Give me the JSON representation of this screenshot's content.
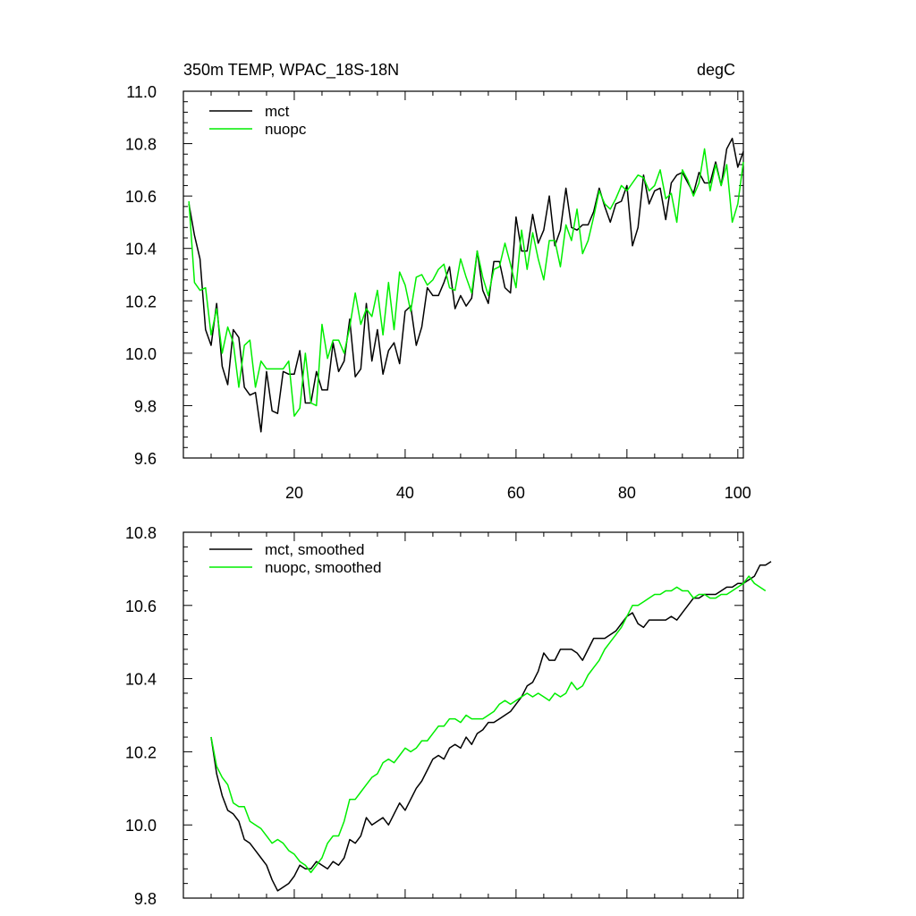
{
  "colors": {
    "mct": "#000000",
    "nuopc": "#00ee00"
  },
  "chart_data": [
    {
      "type": "line",
      "title": "350m TEMP, WPAC_18S-18N",
      "units": "degC",
      "xlim": [
        0,
        101
      ],
      "ylim": [
        9.6,
        11.0
      ],
      "yticks": [
        "9.6",
        "9.8",
        "10.0",
        "10.2",
        "10.4",
        "10.6",
        "10.8",
        "11.0"
      ],
      "xticks": [
        "20",
        "40",
        "60",
        "80",
        "100"
      ],
      "x_start": 1,
      "series": [
        {
          "name": "mct",
          "color_key": "mct",
          "values": [
            10.57,
            10.45,
            10.36,
            10.09,
            10.03,
            10.19,
            9.95,
            9.88,
            10.09,
            10.06,
            9.87,
            9.84,
            9.85,
            9.7,
            9.93,
            9.78,
            9.77,
            9.93,
            9.92,
            9.92,
            10.01,
            9.81,
            9.81,
            9.93,
            9.86,
            9.86,
            10.04,
            9.93,
            9.97,
            10.13,
            9.91,
            9.94,
            10.19,
            9.97,
            10.09,
            9.92,
            10.01,
            10.04,
            9.96,
            10.16,
            10.18,
            10.03,
            10.1,
            10.25,
            10.22,
            10.22,
            10.27,
            10.33,
            10.17,
            10.22,
            10.18,
            10.21,
            10.39,
            10.24,
            10.19,
            10.35,
            10.35,
            10.25,
            10.23,
            10.52,
            10.39,
            10.39,
            10.53,
            10.42,
            10.47,
            10.6,
            10.41,
            10.47,
            10.63,
            10.48,
            10.47,
            10.49,
            10.49,
            10.54,
            10.63,
            10.56,
            10.5,
            10.57,
            10.58,
            10.64,
            10.41,
            10.48,
            10.68,
            10.57,
            10.62,
            10.63,
            10.51,
            10.65,
            10.68,
            10.69,
            10.65,
            10.61,
            10.69,
            10.65,
            10.65,
            10.73,
            10.64,
            10.78,
            10.82,
            10.71,
            10.77
          ]
        },
        {
          "name": "nuopc",
          "color_key": "nuopc",
          "values": [
            10.58,
            10.27,
            10.24,
            10.25,
            10.07,
            10.17,
            10.0,
            10.1,
            10.04,
            9.87,
            10.03,
            10.05,
            9.87,
            9.97,
            9.94,
            9.94,
            9.94,
            9.94,
            9.97,
            9.76,
            9.79,
            10.0,
            9.81,
            9.8,
            10.11,
            9.98,
            10.05,
            10.05,
            10.0,
            10.1,
            10.23,
            10.11,
            10.17,
            10.14,
            10.24,
            10.07,
            10.27,
            10.09,
            10.31,
            10.26,
            10.16,
            10.29,
            10.3,
            10.26,
            10.28,
            10.32,
            10.34,
            10.25,
            10.24,
            10.36,
            10.29,
            10.23,
            10.39,
            10.29,
            10.22,
            10.32,
            10.33,
            10.42,
            10.34,
            10.25,
            10.47,
            10.32,
            10.46,
            10.36,
            10.28,
            10.43,
            10.43,
            10.33,
            10.49,
            10.43,
            10.55,
            10.38,
            10.43,
            10.52,
            10.62,
            10.57,
            10.55,
            10.59,
            10.64,
            10.62,
            10.65,
            10.68,
            10.67,
            10.62,
            10.64,
            10.7,
            10.59,
            10.61,
            10.5,
            10.7,
            10.66,
            10.6,
            10.65,
            10.78,
            10.62,
            10.72,
            10.64,
            10.72,
            10.5,
            10.57,
            10.73
          ]
        }
      ],
      "legend": {
        "placement": "top-left",
        "entries": [
          "mct",
          "nuopc"
        ]
      }
    },
    {
      "type": "line",
      "title": "",
      "xlim": [
        0,
        101
      ],
      "ylim": [
        9.8,
        10.8
      ],
      "yticks": [
        "9.8",
        "10.0",
        "10.2",
        "10.4",
        "10.6",
        "10.8"
      ],
      "x_start": 5,
      "series": [
        {
          "name": "mct, smoothed",
          "color_key": "mct",
          "values": [
            10.24,
            10.14,
            10.08,
            10.04,
            10.03,
            10.01,
            9.96,
            9.95,
            9.93,
            9.91,
            9.89,
            9.85,
            9.82,
            9.83,
            9.84,
            9.86,
            9.89,
            9.88,
            9.88,
            9.9,
            9.89,
            9.88,
            9.9,
            9.89,
            9.91,
            9.96,
            9.95,
            9.97,
            10.02,
            10.0,
            10.01,
            10.02,
            10.0,
            10.03,
            10.06,
            10.04,
            10.07,
            10.1,
            10.12,
            10.15,
            10.18,
            10.19,
            10.18,
            10.21,
            10.22,
            10.21,
            10.24,
            10.22,
            10.25,
            10.26,
            10.28,
            10.28,
            10.29,
            10.3,
            10.31,
            10.33,
            10.35,
            10.38,
            10.39,
            10.42,
            10.47,
            10.45,
            10.45,
            10.48,
            10.48,
            10.48,
            10.47,
            10.45,
            10.48,
            10.51,
            10.51,
            10.51,
            10.52,
            10.53,
            10.55,
            10.57,
            10.58,
            10.55,
            10.54,
            10.56,
            10.56,
            10.56,
            10.56,
            10.57,
            10.56,
            10.58,
            10.6,
            10.62,
            10.62,
            10.63,
            10.63,
            10.63,
            10.64,
            10.65,
            10.65,
            10.66,
            10.66,
            10.67,
            10.68,
            10.71,
            10.71,
            10.72
          ]
        },
        {
          "name": "nuopc, smoothed",
          "color_key": "nuopc",
          "values": [
            10.24,
            10.16,
            10.13,
            10.11,
            10.06,
            10.05,
            10.05,
            10.01,
            10.0,
            9.99,
            9.97,
            9.95,
            9.96,
            9.95,
            9.93,
            9.92,
            9.9,
            9.89,
            9.87,
            9.89,
            9.91,
            9.95,
            9.97,
            9.97,
            10.01,
            10.07,
            10.07,
            10.09,
            10.11,
            10.13,
            10.14,
            10.17,
            10.18,
            10.17,
            10.19,
            10.21,
            10.2,
            10.21,
            10.23,
            10.23,
            10.25,
            10.27,
            10.27,
            10.29,
            10.29,
            10.28,
            10.3,
            10.29,
            10.29,
            10.29,
            10.3,
            10.31,
            10.33,
            10.34,
            10.33,
            10.34,
            10.35,
            10.36,
            10.35,
            10.36,
            10.35,
            10.34,
            10.36,
            10.35,
            10.36,
            10.39,
            10.37,
            10.38,
            10.41,
            10.43,
            10.45,
            10.48,
            10.5,
            10.52,
            10.54,
            10.57,
            10.6,
            10.6,
            10.61,
            10.62,
            10.63,
            10.63,
            10.64,
            10.64,
            10.65,
            10.64,
            10.64,
            10.62,
            10.63,
            10.63,
            10.62,
            10.62,
            10.63,
            10.63,
            10.64,
            10.65,
            10.66,
            10.68,
            10.66,
            10.65,
            10.64
          ]
        }
      ],
      "legend": {
        "placement": "top-left",
        "entries": [
          "mct, smoothed",
          "nuopc, smoothed"
        ]
      }
    }
  ]
}
